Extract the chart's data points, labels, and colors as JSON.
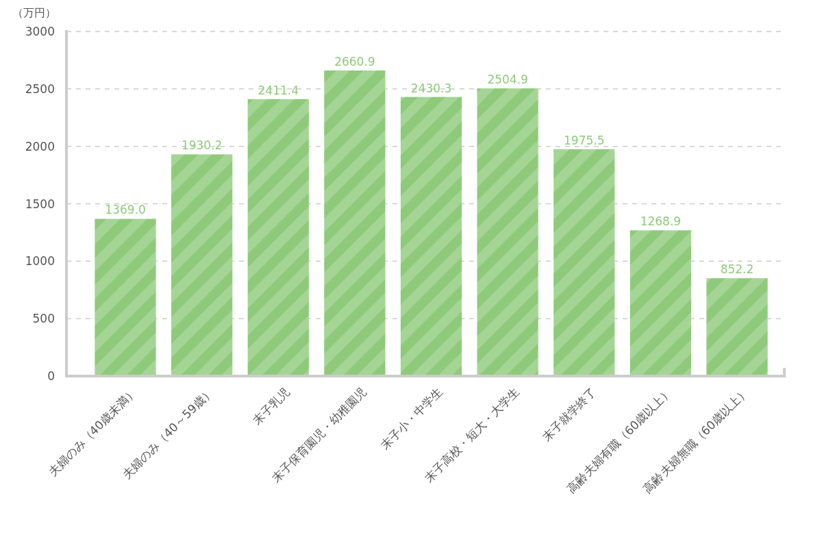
{
  "chart_data": {
    "type": "bar",
    "ylabel": "（万円）",
    "categories": [
      "夫婦のみ（40歳未満）",
      "夫婦のみ（40～59歳）",
      "末子乳児",
      "末子保育園児・幼稚園児",
      "末子小・中学生",
      "末子高校・短大・大学生",
      "末子就学終了",
      "高齢夫婦有職（60歳以上）",
      "高齢夫婦無職（60歳以上）"
    ],
    "values": [
      1369.0,
      1930.2,
      2411.4,
      2660.9,
      2430.3,
      2504.9,
      1975.5,
      1268.9,
      852.2
    ],
    "value_labels": [
      "1369.0",
      "1930.2",
      "2411.4",
      "2660.9",
      "2430.3",
      "2504.9",
      "1975.5",
      "1268.9",
      "852.2"
    ],
    "color": "#8fca7b",
    "ylim": [
      0,
      3000
    ],
    "yticks": [
      0,
      500,
      1000,
      1500,
      2000,
      2500,
      3000
    ],
    "grid": "y"
  }
}
